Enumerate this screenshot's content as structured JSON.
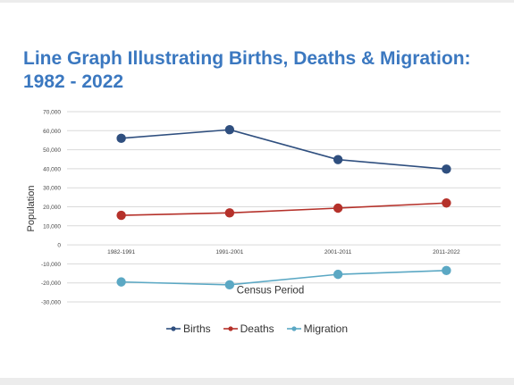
{
  "chart_data": {
    "type": "line",
    "title": "Line Graph Illustrating Births, Deaths & Migration: 1982 - 2022",
    "xlabel": "Census Period",
    "ylabel": "Population",
    "categories": [
      "1982-1991",
      "1991-2001",
      "2001-2011",
      "2011-2022"
    ],
    "ylim": [
      -30000,
      70000
    ],
    "yticks": [
      70000,
      60000,
      50000,
      40000,
      30000,
      20000,
      10000,
      0,
      -10000,
      -20000,
      -30000
    ],
    "ytick_labels": [
      "70,000",
      "60,000",
      "50,000",
      "40,000",
      "30,000",
      "20,000",
      "10,000",
      "0",
      "-10,000",
      "-20,000",
      "-30,000"
    ],
    "grid": true,
    "legend": "bottom",
    "series": [
      {
        "name": "Births",
        "color": "#2f4f7f",
        "values": [
          56000,
          60500,
          44800,
          39800
        ]
      },
      {
        "name": "Deaths",
        "color": "#b5312a",
        "values": [
          15500,
          16800,
          19300,
          22000
        ]
      },
      {
        "name": "Migration",
        "color": "#5ba8c4",
        "values": [
          -19500,
          -21000,
          -15500,
          -13500
        ]
      }
    ]
  }
}
